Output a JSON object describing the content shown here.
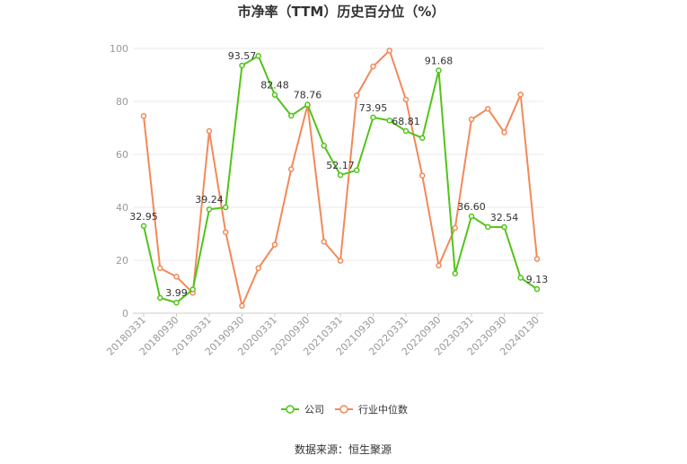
{
  "chart_data": {
    "type": "line",
    "title": "市净率（TTM）历史百分位（%）",
    "xlabel": "",
    "ylabel": "",
    "ylim": [
      0,
      100
    ],
    "yticks": [
      0,
      20,
      40,
      60,
      80,
      100
    ],
    "x": [
      "20180331",
      "20180630",
      "20180930",
      "20181231",
      "20190331",
      "20190630",
      "20190930",
      "20191231",
      "20200331",
      "20200630",
      "20200930",
      "20201231",
      "20210331",
      "20210630",
      "20210930",
      "20211231",
      "20220331",
      "20220630",
      "20220930",
      "20221231",
      "20230331",
      "20230630",
      "20230930",
      "20231231",
      "20240130"
    ],
    "x_tick_labels": [
      "20180331",
      "20180930",
      "20190331",
      "20190930",
      "20200331",
      "20200930",
      "20210331",
      "20210930",
      "20220331",
      "20220930",
      "20230331",
      "20230930",
      "20240130"
    ],
    "grid": true,
    "legend_position": "bottom",
    "series": [
      {
        "name": "公司",
        "color": "#52c41a",
        "values": [
          32.95,
          5.8,
          3.99,
          9.0,
          39.24,
          40.0,
          93.57,
          97.2,
          82.48,
          74.6,
          78.76,
          63.3,
          52.17,
          54.0,
          73.95,
          72.8,
          68.81,
          66.2,
          91.68,
          15.0,
          36.6,
          32.6,
          32.54,
          13.4,
          9.13
        ],
        "labels": {
          "0": "32.95",
          "2": "3.99",
          "4": "39.24",
          "6": "93.57",
          "8": "82.48",
          "10": "78.76",
          "12": "52.17",
          "14": "73.95",
          "16": "68.81",
          "18": "91.68",
          "20": "36.60",
          "22": "32.54",
          "24": "9.13"
        }
      },
      {
        "name": "行业中位数",
        "color": "#f2895a",
        "values": [
          74.5,
          17.0,
          13.8,
          7.7,
          68.8,
          30.6,
          2.8,
          17.0,
          25.9,
          54.4,
          78.6,
          27.0,
          19.8,
          82.3,
          93.2,
          99.2,
          80.7,
          52.0,
          18.0,
          32.2,
          73.2,
          77.2,
          68.3,
          82.6,
          20.5
        ]
      }
    ]
  },
  "footer": {
    "source": "数据来源：恒生聚源"
  }
}
